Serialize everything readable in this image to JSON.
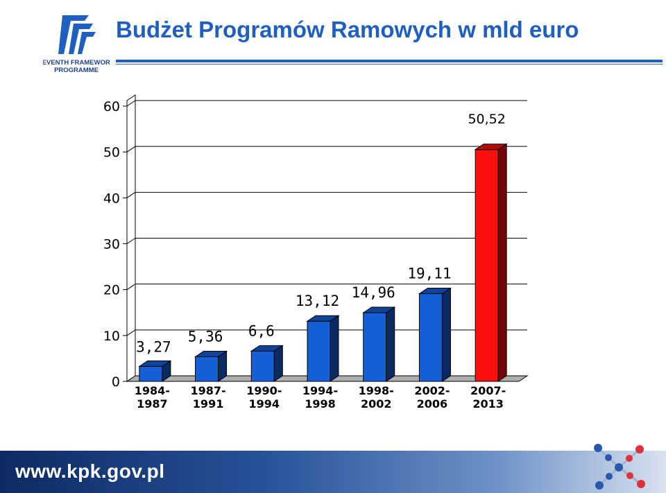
{
  "header": {
    "title": "Budżet Programów Ramowych w mld euro",
    "logo_text_line1": "SEVENTH FRAMEWORK",
    "logo_text_line2": "PROGRAMME"
  },
  "footer": {
    "url": "www.kpk.gov.pl"
  },
  "colors": {
    "primary_blue": "#1f5fbf",
    "bar_blue": "#1560d8",
    "bar_red": "#ff1010"
  },
  "chart_data": {
    "type": "bar",
    "title": "",
    "xlabel": "",
    "ylabel": "",
    "categories": [
      [
        "1984-",
        "1987"
      ],
      [
        "1987-",
        "1991"
      ],
      [
        "1990-",
        "1994"
      ],
      [
        "1994-",
        "1998"
      ],
      [
        "1998-",
        "2002"
      ],
      [
        "2002-",
        "2006"
      ],
      [
        "2007-",
        "2013"
      ]
    ],
    "values": [
      3.27,
      5.36,
      6.6,
      13.12,
      14.96,
      19.11,
      50.52
    ],
    "value_labels": [
      "3,27",
      "5,36",
      "6,6",
      "13,12",
      "14,96",
      "19,11",
      "50,52"
    ],
    "bar_colors": [
      "#1560d8",
      "#1560d8",
      "#1560d8",
      "#1560d8",
      "#1560d8",
      "#1560d8",
      "#ff1010"
    ],
    "ylim": [
      0,
      60
    ],
    "yticks": [
      "0",
      "10",
      "20",
      "30",
      "40",
      "50",
      "60"
    ],
    "grid": true,
    "style": "3d"
  }
}
